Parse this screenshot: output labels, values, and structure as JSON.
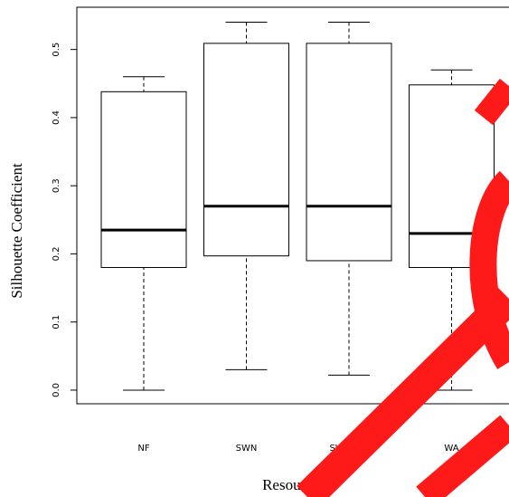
{
  "chart_data": {
    "type": "box",
    "x_label": "Resources",
    "y_label": "Silhouette Coefficient",
    "categories": [
      "NF",
      "SWN",
      "SWN-WA",
      "WA"
    ],
    "boxes": [
      {
        "min": 0.0,
        "q1": 0.18,
        "median": 0.235,
        "q3": 0.438,
        "max": 0.46
      },
      {
        "min": 0.03,
        "q1": 0.197,
        "median": 0.27,
        "q3": 0.509,
        "max": 0.54
      },
      {
        "min": 0.022,
        "q1": 0.19,
        "median": 0.27,
        "q3": 0.509,
        "max": 0.54
      },
      {
        "min": 0.0,
        "q1": 0.18,
        "median": 0.23,
        "q3": 0.448,
        "max": 0.47
      }
    ],
    "ylim": [
      -0.02,
      0.562
    ],
    "yticks": [
      {
        "value": 0.0,
        "label": "0.0"
      },
      0.1,
      0.2,
      0.3,
      0.4,
      0.5
    ]
  }
}
